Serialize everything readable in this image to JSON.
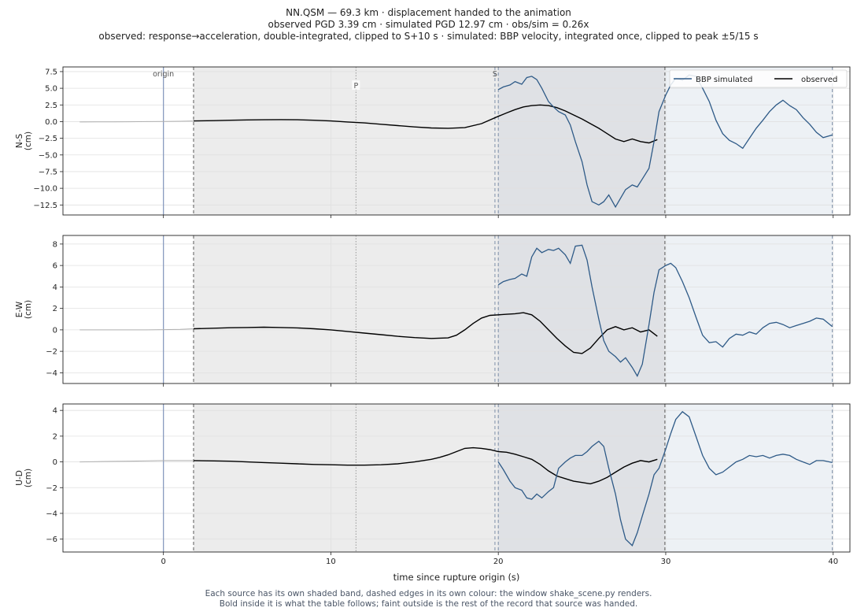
{
  "figure": {
    "title_lines": [
      "NN.QSM  —  69.3 km   ·   displacement handed to the animation",
      "observed PGD 3.39 cm   ·   simulated PGD 12.97 cm   ·   obs/sim = 0.26x",
      "observed: response→acceleration, double-integrated, clipped to S+10 s   ·   simulated: BBP velocity, integrated once, clipped to peak ±5/15 s"
    ],
    "footer_lines": [
      "Each source has its own shaded band, dashed edges in its own colour: the window shake_scene.py renders.",
      "Bold inside it is what the table follows;   faint outside is the rest of the record that source was handed."
    ]
  },
  "colors": {
    "simulated": "#2e5a87",
    "observed": "#000000",
    "observed_faint": "#b0b0b0",
    "band_observed": "#ececec",
    "band_overlap": "#dfe1e5",
    "band_simulated": "#edf1f5",
    "edge_observed": "#5a5a5a",
    "edge_simulated": "#7d8fa8",
    "origin_line": "#8a9bbf",
    "grid": "#e0e0e0"
  },
  "chart_data": {
    "type": "line",
    "xlabel": "time since rupture origin (s)",
    "xlim": [
      -6,
      41
    ],
    "xticks": [
      0,
      10,
      20,
      30,
      40
    ],
    "markers": {
      "origin": 0,
      "P": 11.5,
      "S": 19.8
    },
    "marker_labels": {
      "origin": "origin",
      "P": "P",
      "S": "S"
    },
    "windows": {
      "observed": [
        1.8,
        29.95
      ],
      "simulated": [
        20.0,
        39.95
      ]
    },
    "legend": {
      "entries": [
        "BBP simulated",
        "observed"
      ],
      "position": "top-right"
    },
    "panels": [
      {
        "ylabel": [
          "N-S",
          "(cm)"
        ],
        "ylim": [
          -14,
          8.2
        ],
        "yticks": [
          7.5,
          5.0,
          2.5,
          0.0,
          -2.5,
          -5.0,
          -7.5,
          -10.0,
          -12.5
        ],
        "ytick_labels": [
          "7.5",
          "5.0",
          "2.5",
          "0.0",
          "−2.5",
          "−5.0",
          "−7.5",
          "−10.0",
          "−12.5"
        ],
        "series": [
          {
            "name": "observed",
            "x": [
              -5,
              -4,
              -3,
              -2,
              -1,
              0,
              1,
              1.8,
              3,
              4,
              5,
              6,
              7,
              8,
              9,
              10,
              11,
              12,
              13,
              14,
              15,
              16,
              17,
              18,
              19,
              20,
              20.5,
              21,
              21.5,
              22,
              22.5,
              23,
              23.5,
              24,
              24.5,
              25,
              25.5,
              26,
              26.5,
              27,
              27.5,
              28,
              28.5,
              29,
              29.5,
              30
            ],
            "y": [
              -0.05,
              -0.04,
              -0.03,
              -0.02,
              0.0,
              0.02,
              0.05,
              0.1,
              0.15,
              0.2,
              0.25,
              0.28,
              0.3,
              0.28,
              0.2,
              0.1,
              -0.05,
              -0.2,
              -0.4,
              -0.6,
              -0.8,
              -0.95,
              -1.0,
              -0.9,
              -0.3,
              0.8,
              1.3,
              1.8,
              2.2,
              2.4,
              2.5,
              2.4,
              2.1,
              1.6,
              1.0,
              0.4,
              -0.3,
              -1.0,
              -1.8,
              -2.6,
              -3.0,
              -2.6,
              -3.0,
              -3.2,
              -2.7,
              -1.4
            ]
          },
          {
            "name": "BBP simulated",
            "x": [
              20,
              20.3,
              20.7,
              21,
              21.4,
              21.7,
              22,
              22.3,
              22.6,
              23,
              23.3,
              23.6,
              24,
              24.3,
              24.6,
              25,
              25.3,
              25.6,
              26,
              26.3,
              26.6,
              27,
              27.3,
              27.6,
              28,
              28.3,
              28.6,
              29,
              29.3,
              29.6,
              30,
              30.3,
              30.6,
              31,
              31.4,
              31.8,
              32.2,
              32.6,
              33,
              33.4,
              33.8,
              34.2,
              34.6,
              35,
              35.4,
              35.8,
              36.2,
              36.6,
              37,
              37.4,
              37.8,
              38.2,
              38.6,
              39,
              39.4,
              39.95
            ],
            "y": [
              4.8,
              5.2,
              5.5,
              6.0,
              5.6,
              6.6,
              6.8,
              6.3,
              5.0,
              3.0,
              2.2,
              1.5,
              1.0,
              -0.5,
              -3.0,
              -6.0,
              -9.5,
              -12.0,
              -12.5,
              -12.0,
              -11.0,
              -12.8,
              -11.5,
              -10.2,
              -9.5,
              -9.8,
              -8.6,
              -7.0,
              -3.0,
              1.5,
              4.0,
              5.5,
              6.5,
              6.2,
              7.0,
              6.8,
              5.0,
              3.0,
              0.2,
              -1.8,
              -2.8,
              -3.3,
              -4.0,
              -2.5,
              -1.0,
              0.2,
              1.5,
              2.5,
              3.2,
              2.4,
              1.8,
              0.6,
              -0.4,
              -1.6,
              -2.4,
              -2.0
            ]
          }
        ]
      },
      {
        "ylabel": [
          "E-W",
          "(cm)"
        ],
        "ylim": [
          -5,
          8.8
        ],
        "yticks": [
          8,
          6,
          4,
          2,
          0,
          -2,
          -4
        ],
        "ytick_labels": [
          "8",
          "6",
          "4",
          "2",
          "0",
          "−2",
          "−4"
        ],
        "series": [
          {
            "name": "observed",
            "x": [
              -5,
              -4,
              -3,
              -2,
              -1,
              0,
              1,
              1.8,
              3,
              4,
              5,
              6,
              7,
              8,
              9,
              10,
              11,
              12,
              13,
              14,
              15,
              16,
              17,
              17.5,
              18,
              18.5,
              19,
              19.5,
              20,
              20.5,
              21,
              21.5,
              22,
              22.5,
              23,
              23.5,
              24,
              24.5,
              25,
              25.5,
              26,
              26.5,
              27,
              27.5,
              28,
              28.5,
              29,
              29.5,
              30
            ],
            "y": [
              0.0,
              0.0,
              0.0,
              0.0,
              0.0,
              0.02,
              0.04,
              0.1,
              0.15,
              0.2,
              0.22,
              0.25,
              0.22,
              0.18,
              0.1,
              0.0,
              -0.15,
              -0.3,
              -0.45,
              -0.6,
              -0.72,
              -0.8,
              -0.75,
              -0.5,
              0.0,
              0.6,
              1.1,
              1.35,
              1.4,
              1.45,
              1.5,
              1.6,
              1.4,
              0.8,
              0.0,
              -0.8,
              -1.5,
              -2.1,
              -2.2,
              -1.7,
              -0.8,
              0.0,
              0.3,
              0.0,
              0.2,
              -0.2,
              0.0,
              -0.6,
              -1.8
            ]
          },
          {
            "name": "BBP simulated",
            "x": [
              20,
              20.3,
              20.7,
              21,
              21.4,
              21.7,
              22,
              22.3,
              22.6,
              23,
              23.3,
              23.6,
              24,
              24.3,
              24.6,
              25,
              25.3,
              25.6,
              26,
              26.3,
              26.6,
              27,
              27.3,
              27.6,
              28,
              28.3,
              28.6,
              29,
              29.3,
              29.6,
              30,
              30.3,
              30.6,
              31,
              31.4,
              31.8,
              32.2,
              32.6,
              33,
              33.4,
              33.8,
              34.2,
              34.6,
              35,
              35.4,
              35.8,
              36.2,
              36.6,
              37,
              37.4,
              37.8,
              38.2,
              38.6,
              39,
              39.4,
              39.95
            ],
            "y": [
              4.2,
              4.5,
              4.7,
              4.8,
              5.2,
              5.0,
              6.8,
              7.6,
              7.2,
              7.5,
              7.4,
              7.6,
              7.0,
              6.2,
              7.8,
              7.9,
              6.5,
              4.0,
              1.0,
              -1.0,
              -2.0,
              -2.5,
              -3.0,
              -2.6,
              -3.5,
              -4.3,
              -3.2,
              0.5,
              3.5,
              5.6,
              6.0,
              6.2,
              5.8,
              4.5,
              3.0,
              1.2,
              -0.5,
              -1.2,
              -1.1,
              -1.6,
              -0.8,
              -0.4,
              -0.5,
              -0.2,
              -0.4,
              0.2,
              0.6,
              0.7,
              0.5,
              0.2,
              0.4,
              0.6,
              0.8,
              1.1,
              1.0,
              0.3
            ]
          }
        ]
      },
      {
        "ylabel": [
          "U-D",
          "(cm)"
        ],
        "ylim": [
          -7,
          4.5
        ],
        "yticks": [
          4,
          2,
          0,
          -2,
          -4,
          -6
        ],
        "ytick_labels": [
          "4",
          "2",
          "0",
          "−2",
          "−4",
          "−6"
        ],
        "series": [
          {
            "name": "observed",
            "x": [
              -5,
              -4,
              -3,
              -2,
              -1,
              0,
              1,
              1.8,
              3,
              4,
              5,
              6,
              7,
              8,
              9,
              10,
              11,
              12,
              13,
              14,
              15,
              16,
              16.5,
              17,
              17.5,
              18,
              18.5,
              19,
              19.5,
              20,
              20.5,
              21,
              21.5,
              22,
              22.5,
              23,
              23.5,
              24,
              24.5,
              25,
              25.5,
              26,
              26.5,
              27,
              27.5,
              28,
              28.5,
              29,
              29.5,
              30
            ],
            "y": [
              0.0,
              0.02,
              0.04,
              0.06,
              0.08,
              0.1,
              0.1,
              0.1,
              0.08,
              0.05,
              0.0,
              -0.05,
              -0.1,
              -0.15,
              -0.2,
              -0.22,
              -0.25,
              -0.25,
              -0.22,
              -0.15,
              0.0,
              0.2,
              0.35,
              0.55,
              0.8,
              1.05,
              1.1,
              1.05,
              0.95,
              0.8,
              0.75,
              0.6,
              0.4,
              0.2,
              -0.2,
              -0.7,
              -1.1,
              -1.3,
              -1.5,
              -1.6,
              -1.7,
              -1.5,
              -1.2,
              -0.8,
              -0.4,
              -0.1,
              0.1,
              0.0,
              0.2,
              -0.5
            ]
          },
          {
            "name": "BBP simulated",
            "x": [
              20,
              20.3,
              20.7,
              21,
              21.4,
              21.7,
              22,
              22.3,
              22.6,
              23,
              23.3,
              23.6,
              24,
              24.3,
              24.6,
              25,
              25.3,
              25.6,
              26,
              26.3,
              26.6,
              27,
              27.3,
              27.6,
              28,
              28.3,
              28.6,
              29,
              29.3,
              29.6,
              30,
              30.3,
              30.6,
              31,
              31.4,
              31.8,
              32.2,
              32.6,
              33,
              33.4,
              33.8,
              34.2,
              34.6,
              35,
              35.4,
              35.8,
              36.2,
              36.6,
              37,
              37.4,
              37.8,
              38.2,
              38.6,
              39,
              39.4,
              39.95
            ],
            "y": [
              0.0,
              -0.6,
              -1.5,
              -2.0,
              -2.2,
              -2.8,
              -2.9,
              -2.5,
              -2.8,
              -2.3,
              -2.0,
              -0.5,
              0.0,
              0.3,
              0.5,
              0.5,
              0.8,
              1.2,
              1.6,
              1.2,
              -0.5,
              -2.5,
              -4.5,
              -6.0,
              -6.5,
              -5.5,
              -4.2,
              -2.5,
              -1.0,
              -0.5,
              1.0,
              2.2,
              3.3,
              3.9,
              3.5,
              2.0,
              0.5,
              -0.5,
              -1.0,
              -0.8,
              -0.4,
              0.0,
              0.2,
              0.5,
              0.4,
              0.5,
              0.3,
              0.5,
              0.6,
              0.5,
              0.2,
              0.0,
              -0.2,
              0.1,
              0.1,
              -0.05
            ]
          }
        ]
      }
    ]
  }
}
